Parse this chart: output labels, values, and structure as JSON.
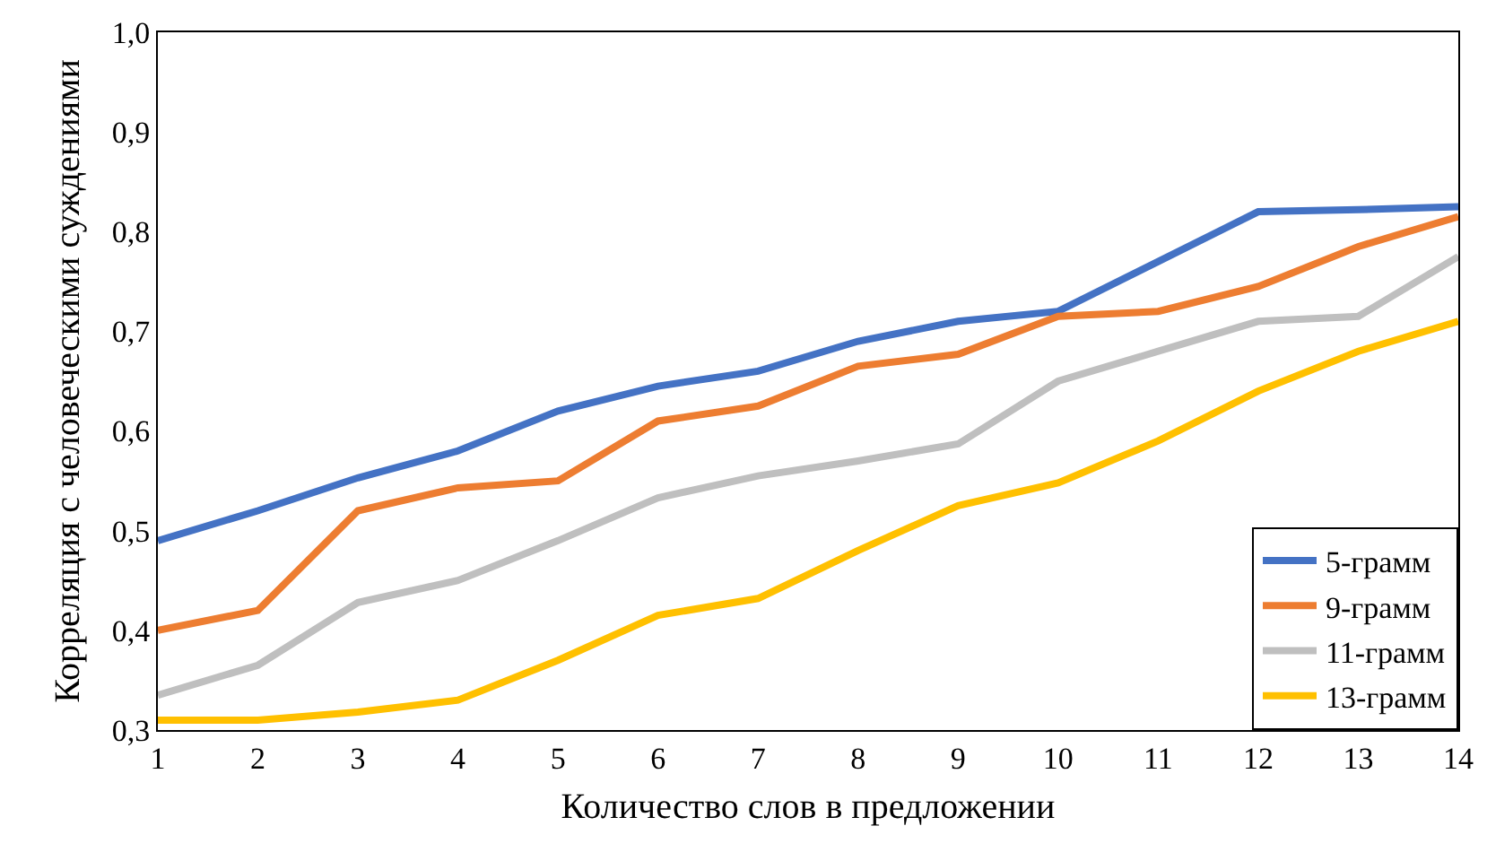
{
  "chart_data": {
    "type": "line",
    "xlabel": "Количество слов в предложении",
    "ylabel": "Корреляция с человеческими суждениями",
    "x": [
      1,
      2,
      3,
      4,
      5,
      6,
      7,
      8,
      9,
      10,
      11,
      12,
      13,
      14
    ],
    "series": [
      {
        "name": "5-грамм",
        "color": "#4472c4",
        "values": [
          0.49,
          0.52,
          0.553,
          0.58,
          0.62,
          0.645,
          0.66,
          0.69,
          0.71,
          0.72,
          0.77,
          0.82,
          0.822,
          0.825
        ]
      },
      {
        "name": "9-грамм",
        "color": "#ed7d31",
        "values": [
          0.4,
          0.42,
          0.52,
          0.543,
          0.55,
          0.61,
          0.625,
          0.665,
          0.677,
          0.715,
          0.72,
          0.745,
          0.785,
          0.815
        ]
      },
      {
        "name": "11-грамм",
        "color": "#bfbfbf",
        "values": [
          0.335,
          0.365,
          0.428,
          0.45,
          0.49,
          0.533,
          0.555,
          0.57,
          0.587,
          0.65,
          0.68,
          0.71,
          0.715,
          0.775
        ]
      },
      {
        "name": "13-грамм",
        "color": "#ffc000",
        "values": [
          0.31,
          0.31,
          0.318,
          0.33,
          0.37,
          0.415,
          0.432,
          0.48,
          0.525,
          0.548,
          0.59,
          0.64,
          0.68,
          0.71
        ]
      }
    ],
    "xlim": [
      1,
      14
    ],
    "xticks": [
      1,
      2,
      3,
      4,
      5,
      6,
      7,
      8,
      9,
      10,
      11,
      12,
      13,
      14
    ],
    "ylim": [
      0.3,
      1.0
    ],
    "yticks": [
      {
        "value": 0.3,
        "label": "0,3"
      },
      {
        "value": 0.4,
        "label": "0,4"
      },
      {
        "value": 0.5,
        "label": "0,5"
      },
      {
        "value": 0.6,
        "label": "0,6"
      },
      {
        "value": 0.7,
        "label": "0,7"
      },
      {
        "value": 0.8,
        "label": "0,8"
      },
      {
        "value": 0.9,
        "label": "0,9"
      },
      {
        "value": 1.0,
        "label": "1,0"
      }
    ],
    "grid": false,
    "legend": "bottom right",
    "marker": "none",
    "line_style": "solid"
  }
}
